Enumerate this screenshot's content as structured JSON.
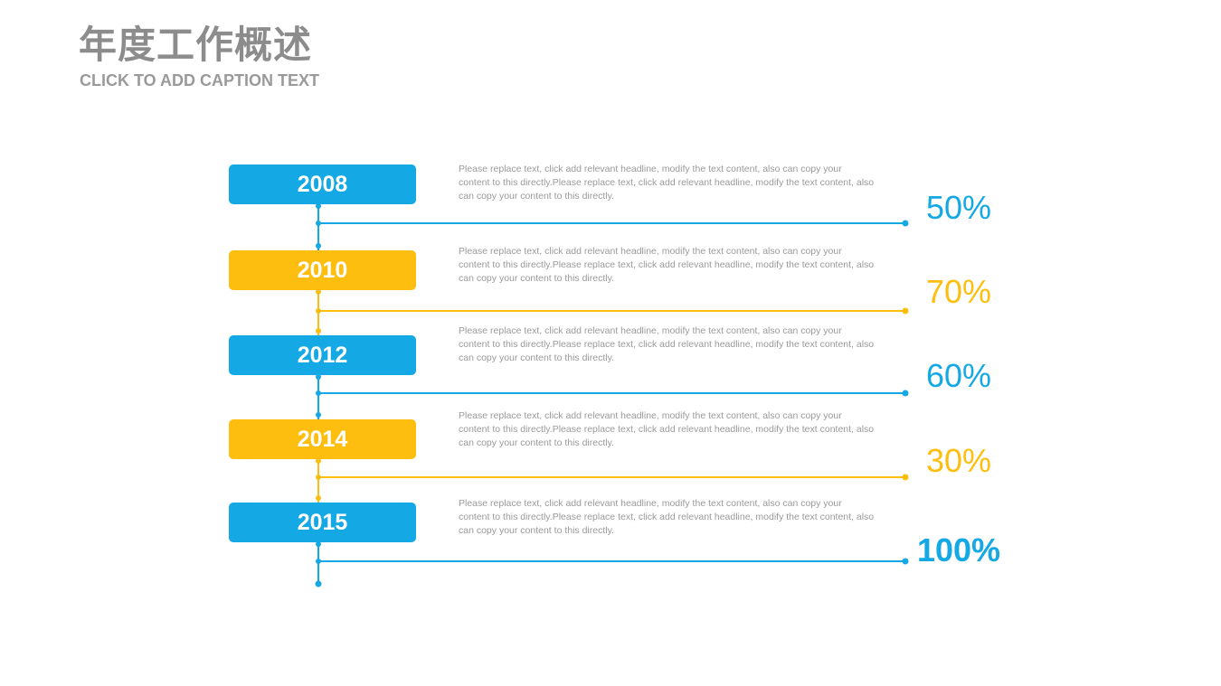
{
  "header": {
    "title": "年度工作概述",
    "subtitle": "CLICK TO ADD CAPTION TEXT"
  },
  "colors": {
    "blue": "#14a8e4",
    "yellow": "#fdbe10"
  },
  "items": [
    {
      "year": "2008",
      "color": "blue",
      "desc": "Please replace text, click add relevant headline, modify the text content, also can copy your content to this directly.Please replace text, click add relevant headline, modify the text content, also can copy your content to this directly.",
      "percent": "50%",
      "value": 50
    },
    {
      "year": "2010",
      "color": "yellow",
      "desc": "Please replace text, click add relevant headline, modify the text content, also can copy your content to this directly.Please replace text, click add relevant headline, modify the text content, also can copy your content to this directly.",
      "percent": "70%",
      "value": 70
    },
    {
      "year": "2012",
      "color": "blue",
      "desc": "Please replace text, click add relevant headline, modify the text content, also can copy your content to this directly.Please replace text, click add relevant headline, modify the text content, also can copy your content to this directly.",
      "percent": "60%",
      "value": 60
    },
    {
      "year": "2014",
      "color": "yellow",
      "desc": "Please replace text, click add relevant headline, modify the text content, also can copy your content to this directly.Please replace text, click add relevant headline, modify the text content, also can copy your content to this directly.",
      "percent": "30%",
      "value": 30
    },
    {
      "year": "2015",
      "color": "blue",
      "desc": "Please replace text, click add relevant headline, modify the text content, also can copy your content to this directly.Please replace text, click add relevant headline, modify the text content, also can copy your content to this directly.",
      "percent": "100%",
      "value": 100
    }
  ]
}
